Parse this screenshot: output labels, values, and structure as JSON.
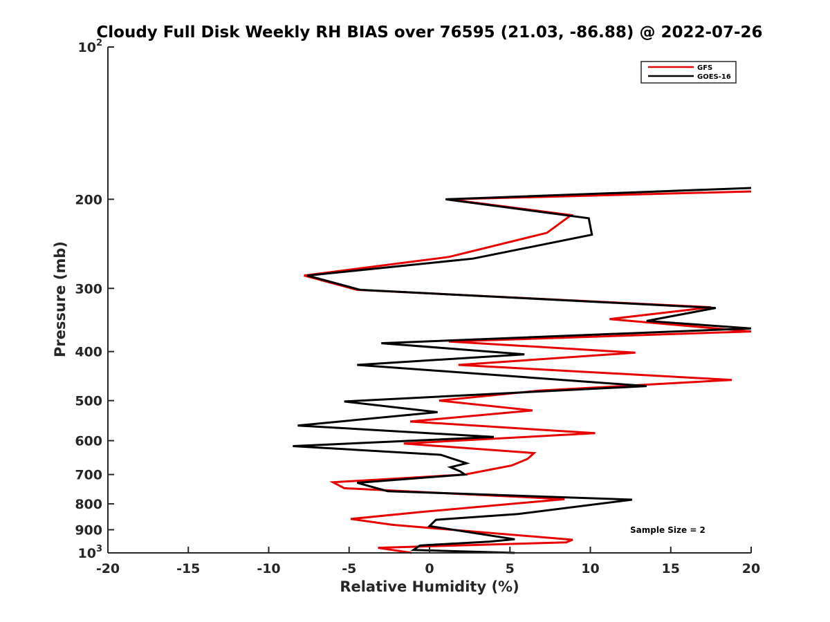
{
  "chart_data": {
    "type": "line",
    "title": "Cloudy Full Disk Weekly RH BIAS over 76595 (21.03, -86.88) @ 2022-07-26",
    "xlabel": "Relative Humidity (%)",
    "ylabel": "Pressure (mb)",
    "xlim": [
      -20,
      20
    ],
    "ylim": [
      100,
      1000
    ],
    "yscale": "log",
    "y_reversed": true,
    "x_ticks": [
      "-20",
      "-15",
      "-10",
      "-5",
      "0",
      "5",
      "10",
      "15",
      "20"
    ],
    "y_ticks": [
      {
        "value": 100,
        "base": "10",
        "exp": "2"
      },
      {
        "value": 200,
        "label": "200"
      },
      {
        "value": 300,
        "label": "300"
      },
      {
        "value": 400,
        "label": "400"
      },
      {
        "value": 500,
        "label": "500"
      },
      {
        "value": 600,
        "label": "600"
      },
      {
        "value": 700,
        "label": "700"
      },
      {
        "value": 800,
        "label": "800"
      },
      {
        "value": 900,
        "label": "900"
      },
      {
        "value": 1000,
        "base": "10",
        "exp": "3"
      }
    ],
    "legend_position": "top-right",
    "annotation": "Sample Size = 2",
    "series": [
      {
        "name": "GFS",
        "color": "#e60000",
        "points": [
          [
            20,
            193
          ],
          [
            1.2,
            200
          ],
          [
            8.8,
            215
          ],
          [
            7.3,
            233
          ],
          [
            1.2,
            260
          ],
          [
            -7.8,
            283
          ],
          [
            -4.5,
            302
          ],
          [
            17.5,
            327
          ],
          [
            11.2,
            345
          ],
          [
            20,
            365
          ],
          [
            1.2,
            382
          ],
          [
            12.8,
            402
          ],
          [
            1.8,
            425
          ],
          [
            18.8,
            455
          ],
          [
            6.8,
            478
          ],
          [
            0.6,
            500
          ],
          [
            6.4,
            523
          ],
          [
            -1.2,
            550
          ],
          [
            10.3,
            580
          ],
          [
            -1.6,
            608
          ],
          [
            6.5,
            635
          ],
          [
            6.1,
            652
          ],
          [
            5.1,
            672
          ],
          [
            2.2,
            700
          ],
          [
            -6.0,
            725
          ],
          [
            -5.3,
            745
          ],
          [
            8.4,
            783
          ],
          [
            -0.5,
            830
          ],
          [
            -4.9,
            857
          ],
          [
            -2.3,
            880
          ],
          [
            8.9,
            942
          ],
          [
            8.5,
            953
          ],
          [
            -3.2,
            977
          ],
          [
            -1.1,
            1000
          ]
        ]
      },
      {
        "name": "GOES-16",
        "color": "#000000",
        "points": [
          [
            20,
            190
          ],
          [
            1.0,
            200
          ],
          [
            9.9,
            218
          ],
          [
            10.1,
            235
          ],
          [
            2.7,
            262
          ],
          [
            -7.6,
            283
          ],
          [
            -4.3,
            302
          ],
          [
            17.8,
            328
          ],
          [
            13.5,
            348
          ],
          [
            20,
            360
          ],
          [
            -3.0,
            385
          ],
          [
            5.9,
            405
          ],
          [
            -4.5,
            425
          ],
          [
            13.5,
            468
          ],
          [
            -5.3,
            502
          ],
          [
            0.5,
            527
          ],
          [
            -8.2,
            560
          ],
          [
            4.0,
            590
          ],
          [
            -8.5,
            615
          ],
          [
            0.7,
            640
          ],
          [
            2.3,
            665
          ],
          [
            1.3,
            677
          ],
          [
            1.9,
            690
          ],
          [
            2.2,
            700
          ],
          [
            -4.5,
            727
          ],
          [
            -2.6,
            755
          ],
          [
            12.6,
            785
          ],
          [
            5.5,
            838
          ],
          [
            0.4,
            860
          ],
          [
            0.0,
            885
          ],
          [
            5.3,
            940
          ],
          [
            3.7,
            950
          ],
          [
            -0.6,
            967
          ],
          [
            -1.0,
            987
          ],
          [
            5.3,
            1000
          ]
        ]
      }
    ]
  }
}
